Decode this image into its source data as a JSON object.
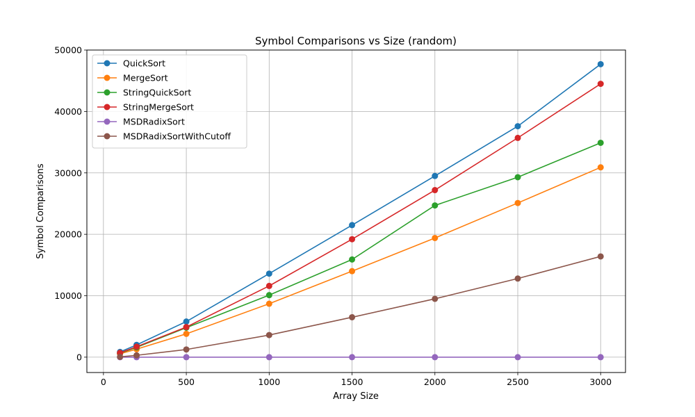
{
  "chart_data": {
    "type": "line",
    "title": "Symbol Comparisons vs Size (random)",
    "xlabel": "Array Size",
    "ylabel": "Symbol Comparisons",
    "x": [
      100,
      200,
      500,
      1000,
      1500,
      2000,
      2500,
      3000
    ],
    "xlim": [
      -100,
      3150
    ],
    "ylim": [
      -2500,
      50000
    ],
    "xticks": [
      0,
      500,
      1000,
      1500,
      2000,
      2500,
      3000
    ],
    "yticks": [
      0,
      10000,
      20000,
      30000,
      40000,
      50000
    ],
    "grid": true,
    "legend_position": "top-left",
    "series": [
      {
        "name": "QuickSort",
        "color": "#1f77b4",
        "values": [
          850,
          2000,
          5800,
          13600,
          21500,
          29500,
          37600,
          47700
        ]
      },
      {
        "name": "MergeSort",
        "color": "#ff7f0e",
        "values": [
          550,
          1300,
          3800,
          8700,
          14000,
          19400,
          25100,
          30900
        ]
      },
      {
        "name": "StringQuickSort",
        "color": "#2ca02c",
        "values": [
          650,
          1600,
          4800,
          10100,
          15900,
          24700,
          29300,
          34900
        ]
      },
      {
        "name": "StringMergeSort",
        "color": "#d62728",
        "values": [
          700,
          1700,
          4900,
          11600,
          19200,
          27200,
          35700,
          44500
        ]
      },
      {
        "name": "MSDRadixSort",
        "color": "#9467bd",
        "values": [
          0,
          0,
          0,
          0,
          0,
          0,
          0,
          0
        ]
      },
      {
        "name": "MSDRadixSortWithCutoff",
        "color": "#8c564b",
        "values": [
          50,
          300,
          1250,
          3600,
          6500,
          9500,
          12800,
          16400
        ]
      }
    ]
  }
}
